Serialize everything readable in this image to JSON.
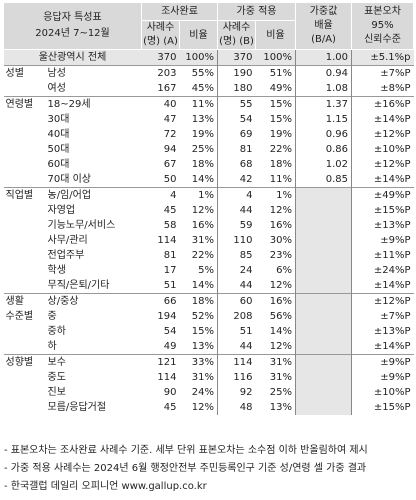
{
  "header": {
    "title_line1": "응답자 특성표",
    "title_line2": "2024년 7~12월",
    "survey_done": "조사완료",
    "weighted": "가중 적용",
    "weight_multiplier": "가중값\n배율\n(B/A)",
    "moe": "표본오차\n95%\n신뢰수준",
    "cases_a": "사례수\n(명) (A)",
    "ratio": "비율",
    "cases_b": "사례수\n(명) (B)",
    "ratio2": "비율"
  },
  "total": {
    "label": "울산광역시 전체",
    "a": "370",
    "a_pct": "100%",
    "b": "370",
    "b_pct": "100%",
    "mult": "1.00",
    "moe": "±5.1%p"
  },
  "sections": [
    {
      "group": "성별",
      "rows": [
        {
          "label": "남성",
          "a": "203",
          "a_pct": "55%",
          "b": "190",
          "b_pct": "51%",
          "mult": "0.94",
          "moe": "±7%P"
        },
        {
          "label": "여성",
          "a": "167",
          "a_pct": "45%",
          "b": "180",
          "b_pct": "49%",
          "mult": "1.08",
          "moe": "±8%P"
        }
      ]
    },
    {
      "group": "연령별",
      "rows": [
        {
          "label": "18~29세",
          "a": "40",
          "a_pct": "11%",
          "b": "55",
          "b_pct": "15%",
          "mult": "1.37",
          "moe": "±16%P"
        },
        {
          "label": "30대",
          "a": "47",
          "a_pct": "13%",
          "b": "54",
          "b_pct": "15%",
          "mult": "1.15",
          "moe": "±14%P"
        },
        {
          "label": "40대",
          "a": "72",
          "a_pct": "19%",
          "b": "69",
          "b_pct": "19%",
          "mult": "0.96",
          "moe": "±12%P"
        },
        {
          "label": "50대",
          "a": "94",
          "a_pct": "25%",
          "b": "81",
          "b_pct": "22%",
          "mult": "0.86",
          "moe": "±10%P"
        },
        {
          "label": "60대",
          "a": "67",
          "a_pct": "18%",
          "b": "68",
          "b_pct": "18%",
          "mult": "1.02",
          "moe": "±12%P"
        },
        {
          "label": "70대 이상",
          "a": "50",
          "a_pct": "14%",
          "b": "42",
          "b_pct": "11%",
          "mult": "0.85",
          "moe": "±14%P"
        }
      ]
    },
    {
      "group": "직업별",
      "rows": [
        {
          "label": "농/임/어업",
          "a": "4",
          "a_pct": "1%",
          "b": "4",
          "b_pct": "1%",
          "mult": "",
          "moe": "±49%P"
        },
        {
          "label": "자영업",
          "a": "45",
          "a_pct": "12%",
          "b": "44",
          "b_pct": "12%",
          "mult": "",
          "moe": "±15%P"
        },
        {
          "label": "기능노무/서비스",
          "a": "58",
          "a_pct": "16%",
          "b": "59",
          "b_pct": "16%",
          "mult": "",
          "moe": "±13%P"
        },
        {
          "label": "사무/관리",
          "a": "114",
          "a_pct": "31%",
          "b": "110",
          "b_pct": "30%",
          "mult": "",
          "moe": "±9%P"
        },
        {
          "label": "전업주부",
          "a": "81",
          "a_pct": "22%",
          "b": "85",
          "b_pct": "23%",
          "mult": "",
          "moe": "±11%P"
        },
        {
          "label": "학생",
          "a": "17",
          "a_pct": "5%",
          "b": "24",
          "b_pct": "6%",
          "mult": "",
          "moe": "±24%P"
        },
        {
          "label": "무직/은퇴/기타",
          "a": "51",
          "a_pct": "14%",
          "b": "44",
          "b_pct": "12%",
          "mult": "",
          "moe": "±14%P"
        }
      ]
    },
    {
      "group": "생활\n수준별",
      "rows": [
        {
          "label": "상/중상",
          "a": "66",
          "a_pct": "18%",
          "b": "60",
          "b_pct": "16%",
          "mult": "",
          "moe": "±12%P"
        },
        {
          "label": "중",
          "a": "194",
          "a_pct": "52%",
          "b": "208",
          "b_pct": "56%",
          "mult": "",
          "moe": "±7%P"
        },
        {
          "label": "중하",
          "a": "54",
          "a_pct": "15%",
          "b": "51",
          "b_pct": "14%",
          "mult": "",
          "moe": "±13%P"
        },
        {
          "label": "하",
          "a": "49",
          "a_pct": "13%",
          "b": "44",
          "b_pct": "12%",
          "mult": "",
          "moe": "±14%P"
        }
      ]
    },
    {
      "group": "성향별",
      "rows": [
        {
          "label": "보수",
          "a": "121",
          "a_pct": "33%",
          "b": "114",
          "b_pct": "31%",
          "mult": "",
          "moe": "±9%P"
        },
        {
          "label": "중도",
          "a": "114",
          "a_pct": "31%",
          "b": "116",
          "b_pct": "31%",
          "mult": "",
          "moe": "±9%P"
        },
        {
          "label": "진보",
          "a": "90",
          "a_pct": "24%",
          "b": "92",
          "b_pct": "25%",
          "mult": "",
          "moe": "±10%P"
        },
        {
          "label": "모름/응답거절",
          "a": "45",
          "a_pct": "12%",
          "b": "48",
          "b_pct": "13%",
          "mult": "",
          "moe": "±15%P"
        }
      ]
    }
  ],
  "notes": [
    "- 표본오차는 조사완료 사례수 기준. 세부 단위 표본오차는 소수점 이하 반올림하여 제시",
    "- 가중 적용 사례수는 2024년 6월 행정안전부 주민등록인구 기준 성/연령 셀 가중 결과",
    "- 한국갤럽 데일리 오피니언 www.gallup.co.kr"
  ]
}
